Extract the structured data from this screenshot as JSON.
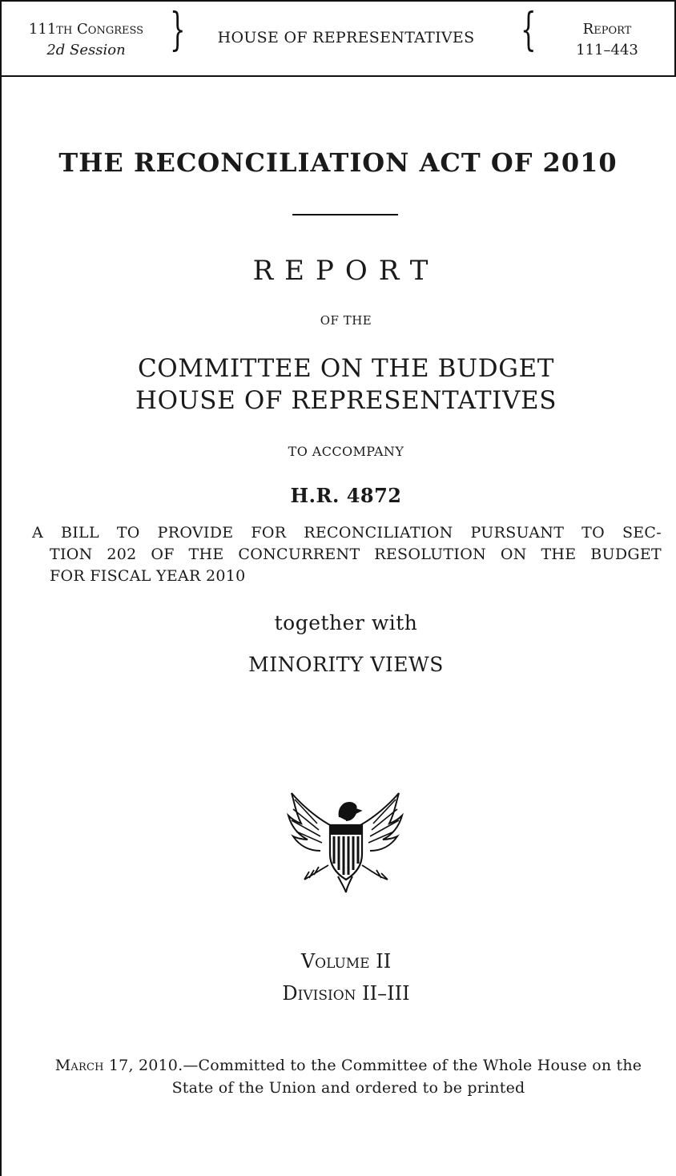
{
  "header": {
    "congress": "111th Congress",
    "session": "2d Session",
    "chamber": "HOUSE OF REPRESENTATIVES",
    "report_label": "Report",
    "report_number": "111–443"
  },
  "title": "THE RECONCILIATION ACT OF 2010",
  "report_word": "REPORT",
  "of_the": "OF THE",
  "committee_line1": "COMMITTEE ON THE BUDGET",
  "committee_line2": "HOUSE OF REPRESENTATIVES",
  "to_accompany": "TO ACCOMPANY",
  "bill_number": "H.R. 4872",
  "bill_description": {
    "line1": "A BILL TO PROVIDE FOR RECONCILIATION PURSUANT TO SEC-",
    "line2": "TION 202 OF THE CONCURRENT RESOLUTION ON THE BUDGET",
    "line3": "FOR FISCAL YEAR 2010"
  },
  "together_with": "together with",
  "minority_views": "MINORITY VIEWS",
  "volume": "Volume II",
  "division": "Division II–III",
  "footer": {
    "date": "March 17, 2010",
    "note": ".—Committed to the Committee of the Whole House on the State of the Union and ordered to be printed"
  }
}
